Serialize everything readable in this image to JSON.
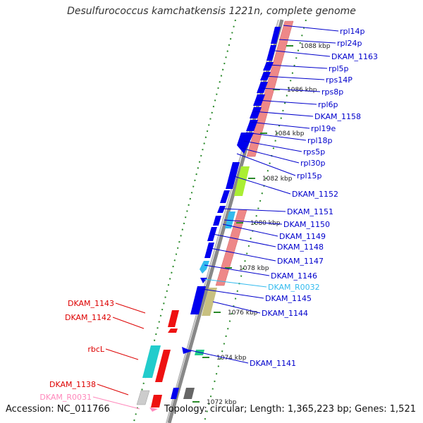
{
  "title": "Desulfurococcus kamchatkensis 1221n, complete genome",
  "footer": {
    "accession": "Accession: NC_011766",
    "summary": "Topology: circular; Length: 1,365,223 bp; Genes: 1,521"
  },
  "kbp_markers": [
    "1088 kbp",
    "1086 kbp",
    "1084 kbp",
    "1082 kbp",
    "1080 kbp",
    "1078 kbp",
    "1076 kbp",
    "1074 kbp",
    "1072 kbp"
  ],
  "right_labels": [
    {
      "text": "rpl14p",
      "color": "#0000cc"
    },
    {
      "text": "rpl24p",
      "color": "#0000cc"
    },
    {
      "text": "DKAM_1163",
      "color": "#0000cc"
    },
    {
      "text": "rpl5p",
      "color": "#0000cc"
    },
    {
      "text": "rps14P",
      "color": "#0000cc"
    },
    {
      "text": "rps8p",
      "color": "#0000cc"
    },
    {
      "text": "rpl6p",
      "color": "#0000cc"
    },
    {
      "text": "DKAM_1158",
      "color": "#0000cc"
    },
    {
      "text": "rpl19e",
      "color": "#0000cc"
    },
    {
      "text": "rpl18p",
      "color": "#0000cc"
    },
    {
      "text": "rps5p",
      "color": "#0000cc"
    },
    {
      "text": "rpl30p",
      "color": "#0000cc"
    },
    {
      "text": "rpl15p",
      "color": "#0000cc"
    },
    {
      "text": "DKAM_1152",
      "color": "#0000cc"
    },
    {
      "text": "DKAM_1151",
      "color": "#0000cc"
    },
    {
      "text": "DKAM_1150",
      "color": "#0000cc"
    },
    {
      "text": "DKAM_1149",
      "color": "#0000cc"
    },
    {
      "text": "DKAM_1148",
      "color": "#0000cc"
    },
    {
      "text": "DKAM_1147",
      "color": "#0000cc"
    },
    {
      "text": "DKAM_1146",
      "color": "#0000cc"
    },
    {
      "text": "DKAM_R0032",
      "color": "#33bbee"
    },
    {
      "text": "DKAM_1145",
      "color": "#0000cc"
    },
    {
      "text": "DKAM_1144",
      "color": "#0000cc"
    },
    {
      "text": "DKAM_1141",
      "color": "#0000cc"
    }
  ],
  "left_labels": [
    {
      "text": "DKAM_1143",
      "color": "#dd0000"
    },
    {
      "text": "DKAM_1142",
      "color": "#dd0000"
    },
    {
      "text": "rbcL",
      "color": "#dd0000"
    },
    {
      "text": "DKAM_1138",
      "color": "#dd0000"
    },
    {
      "text": "DKAM_R0031",
      "color": "#ff88bb"
    }
  ]
}
